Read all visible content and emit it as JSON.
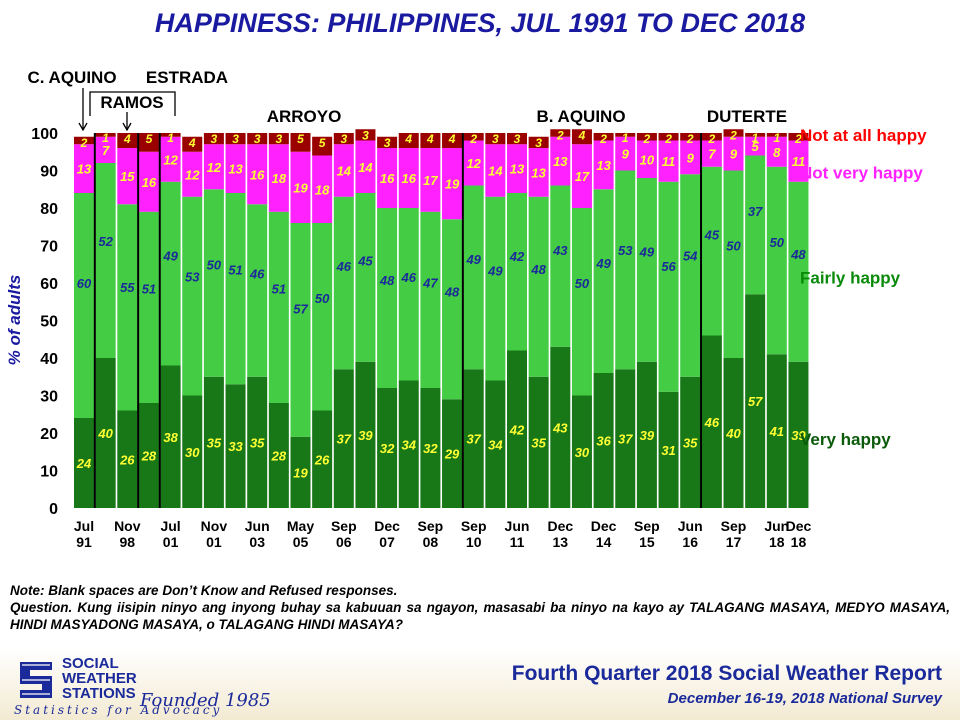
{
  "chart_data": {
    "type": "bar",
    "stacked": true,
    "title": "HAPPINESS: PHILIPPINES, JUL 1991 TO DEC 2018",
    "ylabel": "% of adults",
    "ylim": [
      0,
      100
    ],
    "yticks": [
      0,
      10,
      20,
      30,
      40,
      50,
      60,
      70,
      80,
      90,
      100
    ],
    "x_tick_labels": [
      {
        "i": 0,
        "top": "Jul",
        "bottom": "91"
      },
      {
        "i": 2,
        "top": "Nov",
        "bottom": "98"
      },
      {
        "i": 4,
        "top": "Jul",
        "bottom": "01"
      },
      {
        "i": 6,
        "top": "Nov",
        "bottom": "01"
      },
      {
        "i": 8,
        "top": "Jun",
        "bottom": "03"
      },
      {
        "i": 10,
        "top": "May",
        "bottom": "05"
      },
      {
        "i": 12,
        "top": "Sep",
        "bottom": "06"
      },
      {
        "i": 14,
        "top": "Dec",
        "bottom": "07"
      },
      {
        "i": 16,
        "top": "Sep",
        "bottom": "08"
      },
      {
        "i": 18,
        "top": "Sep",
        "bottom": "10"
      },
      {
        "i": 20,
        "top": "Jun",
        "bottom": "11"
      },
      {
        "i": 22,
        "top": "Dec",
        "bottom": "13"
      },
      {
        "i": 24,
        "top": "Dec",
        "bottom": "14"
      },
      {
        "i": 26,
        "top": "Sep",
        "bottom": "15"
      },
      {
        "i": 28,
        "top": "Jun",
        "bottom": "16"
      },
      {
        "i": 30,
        "top": "Sep",
        "bottom": "17"
      },
      {
        "i": 32,
        "top": "Jun",
        "bottom": "18"
      },
      {
        "i": 33,
        "top": "Dec",
        "bottom": "18"
      }
    ],
    "series": [
      {
        "name": "Very happy",
        "color": "#187818",
        "label_color": "#ffff33",
        "values": [
          24,
          40,
          26,
          28,
          38,
          30,
          35,
          33,
          35,
          28,
          19,
          26,
          37,
          39,
          32,
          34,
          32,
          29,
          37,
          34,
          42,
          35,
          43,
          30,
          36,
          37,
          39,
          31,
          35,
          46,
          40,
          57,
          41,
          39
        ]
      },
      {
        "name": "Fairly happy",
        "color": "#44cc44",
        "label_color": "#1a2a9a",
        "values": [
          60,
          52,
          55,
          51,
          49,
          53,
          50,
          51,
          46,
          51,
          57,
          50,
          46,
          45,
          48,
          46,
          47,
          48,
          49,
          49,
          42,
          48,
          43,
          50,
          49,
          53,
          49,
          56,
          54,
          45,
          50,
          37,
          50,
          48
        ]
      },
      {
        "name": "Not very happy",
        "color": "#ff22ff",
        "label_color": "#ffff33",
        "values": [
          13,
          7,
          15,
          16,
          12,
          12,
          12,
          13,
          16,
          18,
          19,
          18,
          14,
          14,
          16,
          16,
          17,
          19,
          12,
          14,
          13,
          13,
          13,
          17,
          13,
          9,
          10,
          11,
          9,
          7,
          9,
          5,
          8,
          11
        ]
      },
      {
        "name": "Not at all happy",
        "color": "#9a0000",
        "label_color": "#ffff33",
        "values": [
          2,
          1,
          4,
          5,
          1,
          4,
          3,
          3,
          3,
          3,
          5,
          5,
          3,
          3,
          3,
          4,
          4,
          4,
          2,
          3,
          3,
          3,
          2,
          4,
          2,
          1,
          2,
          2,
          2,
          2,
          2,
          1,
          1,
          2
        ]
      }
    ],
    "legend": [
      {
        "label": "Not at all happy",
        "color": "#ff0000",
        "at": 100
      },
      {
        "label": "Not very happy",
        "color": "#ff22ff",
        "at": 90
      },
      {
        "label": "Fairly happy",
        "color": "#0a8a0a",
        "at": 62
      },
      {
        "label": "Very happy",
        "color": "#0a5a0a",
        "at": 19
      }
    ],
    "dividers_after": [
      0,
      2,
      3,
      17,
      28
    ],
    "administrations": [
      {
        "label": "C. AQUINO"
      },
      {
        "label": "RAMOS"
      },
      {
        "label": "ESTRADA"
      },
      {
        "label": "ARROYO"
      },
      {
        "label": "B. AQUINO"
      },
      {
        "label": "DUTERTE"
      }
    ]
  },
  "note": {
    "line1": "Note: Blank spaces are Don’t Know and Refused responses.",
    "question": "Question. Kung iisipin ninyo ang inyong buhay sa kabuuan sa ngayon, masasabi ba ninyo na kayo ay TALAGANG MASAYA, MEDYO MASAYA, HINDI MASYADONG MASAYA, o TALAGANG HINDI MASAYA?"
  },
  "footer": {
    "org_line1": "SOCIAL",
    "org_line2": "WEATHER",
    "org_line3": "STATIONS",
    "founded": "Founded 1985",
    "tagline": "Statistics for Advocacy",
    "report": "Fourth Quarter 2018 Social Weather Report",
    "survey": "December 16-19, 2018 National Survey"
  },
  "colors": {
    "title": "#1a1aa0",
    "brand": "#1a2a9a"
  }
}
